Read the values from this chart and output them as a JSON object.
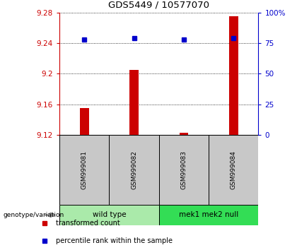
{
  "title": "GDS5449 / 10577070",
  "samples": [
    "GSM999081",
    "GSM999082",
    "GSM999083",
    "GSM999084"
  ],
  "bar_values": [
    9.155,
    9.205,
    9.123,
    9.275
  ],
  "bar_base": 9.12,
  "percentile_pct": [
    78,
    79,
    78,
    79
  ],
  "ylim_left": [
    9.12,
    9.28
  ],
  "ylim_right": [
    0,
    100
  ],
  "yticks_left": [
    9.12,
    9.16,
    9.2,
    9.24,
    9.28
  ],
  "ytick_labels_left": [
    "9.12",
    "9.16",
    "9.2",
    "9.24",
    "9.28"
  ],
  "yticks_right": [
    0,
    25,
    50,
    75,
    100
  ],
  "ytick_labels_right": [
    "0",
    "25",
    "50",
    "75",
    "100%"
  ],
  "groups": [
    {
      "label": "wild type",
      "indices": [
        0,
        1
      ],
      "color": "#aaeaaa"
    },
    {
      "label": "mek1 mek2 null",
      "indices": [
        2,
        3
      ],
      "color": "#33dd55"
    }
  ],
  "bar_color": "#cc0000",
  "square_color": "#0000cc",
  "left_axis_color": "#cc0000",
  "right_axis_color": "#0000cc",
  "bg_sample_labels": "#c8c8c8",
  "legend_bar_label": "transformed count",
  "legend_sq_label": "percentile rank within the sample",
  "genotype_label": "genotype/variation",
  "fig_width": 4.2,
  "fig_height": 3.54,
  "dpi": 100
}
